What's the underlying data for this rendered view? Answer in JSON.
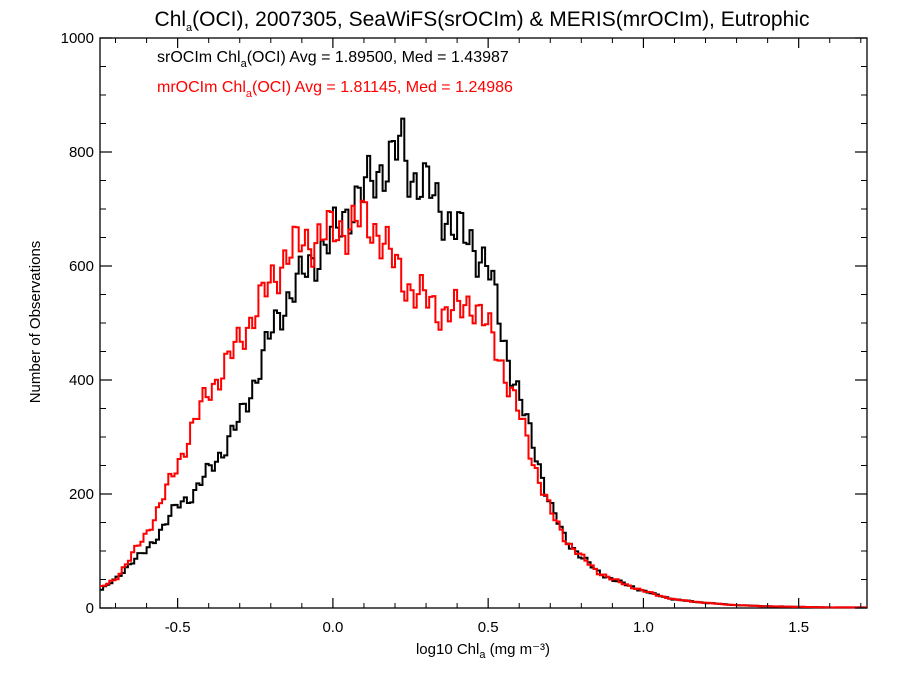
{
  "chart_data": {
    "type": "line",
    "title": {
      "pre": "Chl",
      "sub": "a",
      "post": "(OCI), 2007305, SeaWiFS(srOCIm) & MERIS(mrOCIm), Eutrophic"
    },
    "xlabel": {
      "pre": "log10 Chl",
      "sub": "a",
      "post": " (mg m⁻³)"
    },
    "ylabel": "Number of Observations",
    "xlim": [
      -0.75,
      1.72
    ],
    "ylim": [
      0,
      1000
    ],
    "xticks": [
      "-0.5",
      "0.0",
      "0.5",
      "1.0",
      "1.5"
    ],
    "yticks": [
      "0",
      "200",
      "400",
      "600",
      "800",
      "1000"
    ],
    "annotations": [
      {
        "pre": "srOCIm Chl",
        "sub": "a",
        "post": "(OCI) Avg = 1.89500, Med = 1.43987",
        "color": "#000000"
      },
      {
        "pre": "mrOCIm Chl",
        "sub": "a",
        "post": "(OCI) Avg = 1.81145, Med = 1.24986",
        "color": "#ff0000"
      }
    ],
    "bin_width": 0.01,
    "series": [
      {
        "color": "#000000",
        "x": [
          -0.75,
          -0.7,
          -0.65,
          -0.6,
          -0.55,
          -0.5,
          -0.45,
          -0.4,
          -0.35,
          -0.3,
          -0.25,
          -0.2,
          -0.15,
          -0.1,
          -0.05,
          0.0,
          0.05,
          0.1,
          0.15,
          0.2,
          0.22,
          0.25,
          0.3,
          0.35,
          0.4,
          0.45,
          0.5,
          0.55,
          0.6,
          0.65,
          0.7,
          0.75,
          0.8,
          0.85,
          0.9,
          0.95,
          1.0,
          1.05,
          1.1,
          1.2,
          1.3,
          1.4,
          1.5,
          1.6,
          1.72
        ],
        "y": [
          30,
          50,
          80,
          100,
          140,
          180,
          200,
          240,
          280,
          330,
          400,
          480,
          540,
          580,
          620,
          650,
          700,
          730,
          770,
          790,
          820,
          760,
          740,
          700,
          660,
          640,
          600,
          470,
          370,
          280,
          180,
          120,
          90,
          65,
          50,
          40,
          30,
          22,
          15,
          9,
          5,
          3,
          2,
          1,
          1
        ]
      },
      {
        "color": "#ff0000",
        "x": [
          -0.75,
          -0.7,
          -0.65,
          -0.6,
          -0.55,
          -0.5,
          -0.45,
          -0.4,
          -0.35,
          -0.3,
          -0.25,
          -0.2,
          -0.15,
          -0.1,
          -0.05,
          0.0,
          0.05,
          0.1,
          0.15,
          0.2,
          0.25,
          0.3,
          0.35,
          0.4,
          0.45,
          0.5,
          0.55,
          0.6,
          0.65,
          0.7,
          0.75,
          0.8,
          0.85,
          0.9,
          0.95,
          1.0,
          1.05,
          1.1,
          1.2,
          1.3,
          1.4,
          1.5,
          1.6,
          1.72
        ],
        "y": [
          35,
          50,
          90,
          130,
          190,
          250,
          320,
          380,
          420,
          470,
          520,
          570,
          620,
          640,
          650,
          660,
          670,
          680,
          660,
          600,
          560,
          540,
          520,
          520,
          540,
          490,
          420,
          340,
          250,
          170,
          120,
          90,
          65,
          50,
          40,
          30,
          22,
          15,
          9,
          5,
          3,
          2,
          1,
          1
        ]
      }
    ]
  }
}
